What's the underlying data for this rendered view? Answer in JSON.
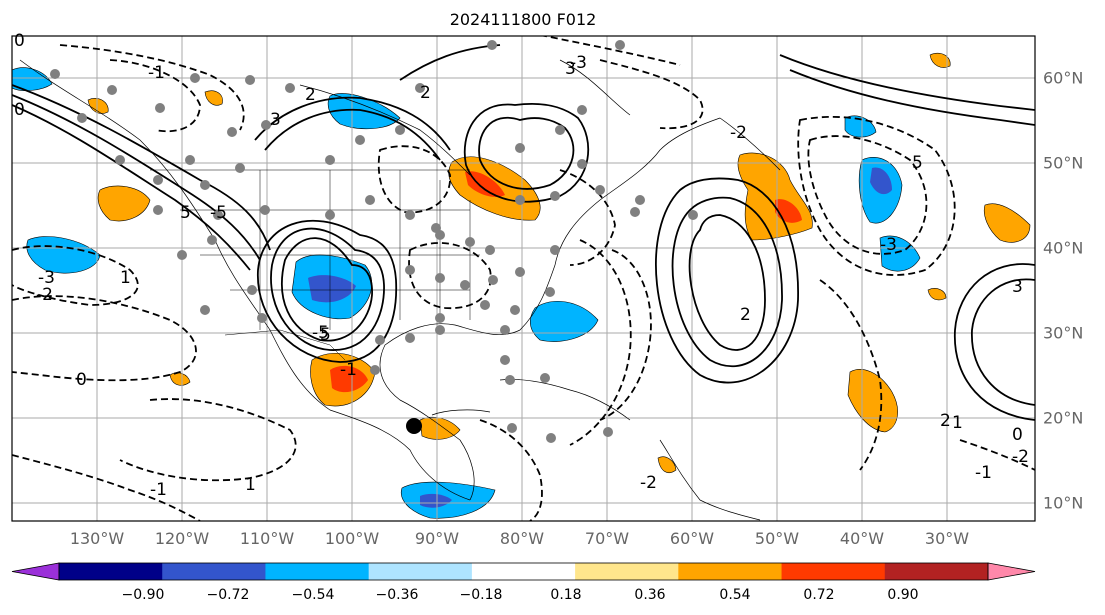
{
  "title": "2024111800 F012",
  "lon_labels": [
    "130°W",
    "120°W",
    "110°W",
    "100°W",
    "90°W",
    "80°W",
    "70°W",
    "60°W",
    "50°W",
    "40°W",
    "30°W"
  ],
  "lat_labels": [
    "60°N",
    "50°N",
    "40°N",
    "30°N",
    "20°N",
    "10°N"
  ],
  "colorbar": {
    "ticks": [
      "−0.90",
      "−0.72",
      "−0.54",
      "−0.36",
      "−0.18",
      "0.18",
      "0.36",
      "0.54",
      "0.72",
      "0.90"
    ],
    "colors": [
      "#9b30d9",
      "#000088",
      "#3355cc",
      "#00b4ff",
      "#aee4ff",
      "#ffffff",
      "#ffe68c",
      "#ffa500",
      "#ff3a00",
      "#b22222",
      "#ff88aa"
    ]
  },
  "contour_labels": [
    "0",
    "-1",
    "-2",
    "-3",
    "1",
    "2",
    "3",
    "5",
    "-5",
    "2",
    "-2",
    "-1",
    "0",
    "1",
    "3",
    "-3",
    "5",
    "-5",
    "2",
    "-2",
    "3",
    "-1",
    "0",
    "1",
    "-3",
    "5",
    "-2",
    "2",
    "-1",
    "0"
  ]
}
